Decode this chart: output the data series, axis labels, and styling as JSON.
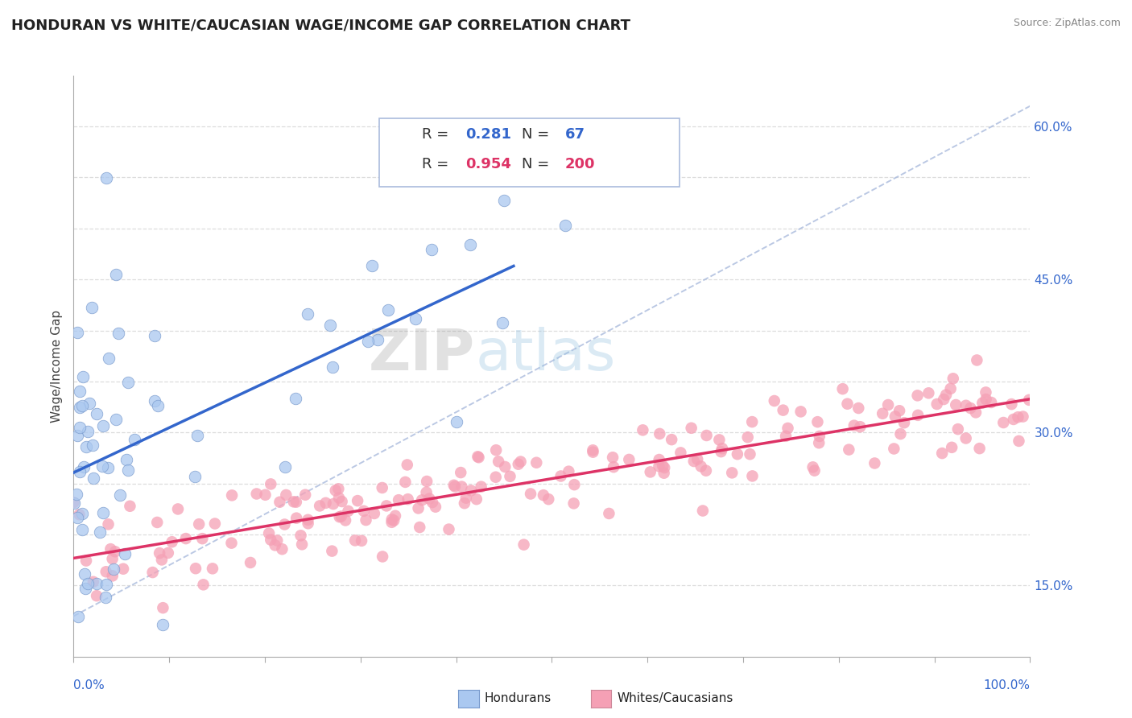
{
  "title": "HONDURAN VS WHITE/CAUCASIAN WAGE/INCOME GAP CORRELATION CHART",
  "source": "Source: ZipAtlas.com",
  "ylabel": "Wage/Income Gap",
  "y_ticks": [
    0.15,
    0.2,
    0.25,
    0.3,
    0.35,
    0.4,
    0.45,
    0.5,
    0.55,
    0.6
  ],
  "y_tick_labels": [
    "15.0%",
    "",
    "",
    "30.0%",
    "",
    "",
    "45.0%",
    "",
    "",
    "60.0%"
  ],
  "xlim": [
    0.0,
    1.0
  ],
  "ylim": [
    0.08,
    0.65
  ],
  "honduran_R": 0.281,
  "honduran_N": 67,
  "caucasian_R": 0.954,
  "caucasian_N": 200,
  "scatter_blue_color": "#aac8f0",
  "scatter_pink_color": "#f5a0b5",
  "line_blue_color": "#3366cc",
  "line_pink_color": "#dd3366",
  "background_color": "#ffffff",
  "grid_color": "#dddddd",
  "title_fontsize": 13,
  "axis_label_fontsize": 11,
  "tick_fontsize": 11,
  "legend_fontsize": 13
}
